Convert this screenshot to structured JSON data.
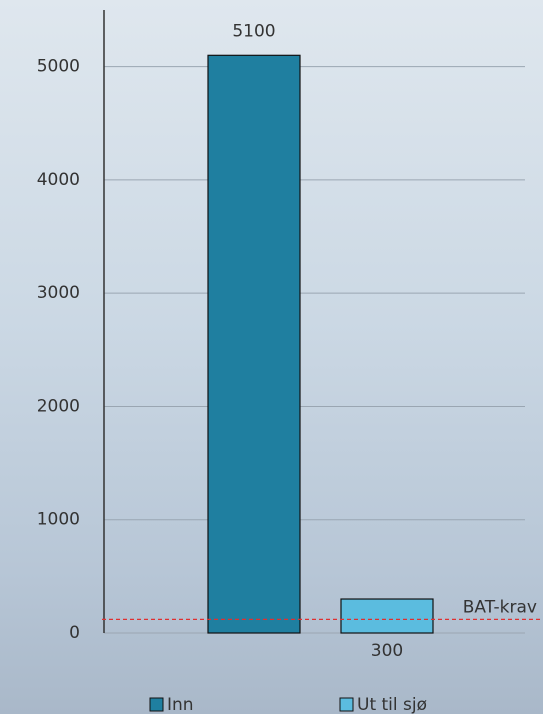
{
  "chart_data": {
    "type": "bar",
    "categories": [
      "Inn",
      "Ut til sjø"
    ],
    "values": [
      5100,
      300
    ],
    "colors": [
      "#1f7fa0",
      "#5bbcdf"
    ],
    "ylim": [
      0,
      5500
    ],
    "yticks": [
      0,
      1000,
      2000,
      3000,
      4000,
      5000
    ],
    "grid": true,
    "reference_lines": [
      {
        "value": 120,
        "label": "BAT-krav",
        "color": "#e03030"
      }
    ],
    "legend": "bottom"
  }
}
